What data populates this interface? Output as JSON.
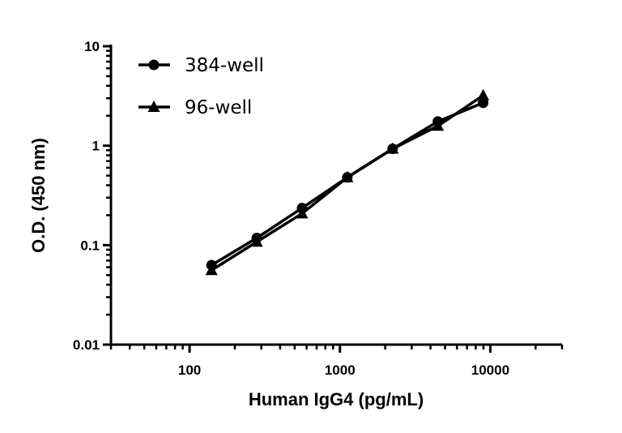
{
  "chart_data": {
    "type": "line",
    "title": "",
    "xlabel": "Human IgG4 (pg/mL)",
    "ylabel": "O.D. (450 nm)",
    "x_scale": "log",
    "y_scale": "log",
    "xlim": [
      30,
      30000
    ],
    "ylim": [
      0.01,
      10
    ],
    "x_ticks": [
      {
        "value": 100,
        "label": "100"
      },
      {
        "value": 1000,
        "label": "1000"
      },
      {
        "value": 10000,
        "label": "10000"
      }
    ],
    "y_ticks": [
      {
        "value": 0.01,
        "label": "0.01"
      },
      {
        "value": 0.1,
        "label": "0.1"
      },
      {
        "value": 1,
        "label": "1"
      },
      {
        "value": 10,
        "label": "10"
      }
    ],
    "grid": false,
    "legend_position": "top-left",
    "color": "#000000",
    "x": [
      140,
      280,
      560,
      1120,
      2240,
      4480,
      8960
    ],
    "series": [
      {
        "name": "384-well",
        "marker": "circle",
        "values": [
          0.063,
          0.118,
          0.236,
          0.48,
          0.93,
          1.75,
          2.7
        ]
      },
      {
        "name": "96-well",
        "marker": "triangle",
        "values": [
          0.056,
          0.108,
          0.208,
          0.48,
          0.93,
          1.58,
          3.2
        ]
      }
    ]
  }
}
